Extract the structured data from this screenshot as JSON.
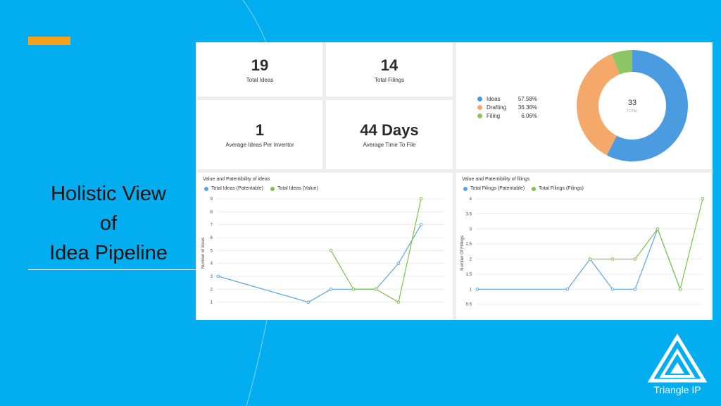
{
  "slide": {
    "title_lines": [
      "Holistic View",
      "of",
      "Idea Pipeline"
    ],
    "accent_color": "#f7a21b",
    "background_color": "#03aef0"
  },
  "kpis": {
    "total_ideas": {
      "value": "19",
      "label": "Total Ideas"
    },
    "total_filings": {
      "value": "14",
      "label": "Total Filings"
    },
    "avg_ideas_per_inventor": {
      "value": "1",
      "label": "Average Ideas Per Inventor"
    },
    "avg_time_to_file": {
      "value": "44 Days",
      "label": "Average Time To File"
    }
  },
  "donut": {
    "center_value": "33",
    "center_label": "TOTAL",
    "legend": [
      {
        "name": "Ideas",
        "pct": "57.58%",
        "color": "#4a9be0"
      },
      {
        "name": "Drafting",
        "pct": "36.36%",
        "color": "#f4a86a"
      },
      {
        "name": "Filing",
        "pct": "6.06%",
        "color": "#8cc665"
      }
    ]
  },
  "chart_data": [
    {
      "type": "line",
      "title": "Value and Patentibility of ideas",
      "xlabel": "",
      "ylabel": "Number of Ideas",
      "yticks": [
        "1",
        "2",
        "3",
        "4",
        "5",
        "6",
        "7",
        "8",
        "9"
      ],
      "ylim": [
        0.6,
        9
      ],
      "x_count": 10,
      "grid": true,
      "legend_placement": "top-left",
      "series": [
        {
          "name": "Total Ideas (Patentable)",
          "color": "#5aa5e6",
          "x": [
            0,
            4,
            5,
            6,
            7,
            8,
            9
          ],
          "values": [
            3,
            1,
            2,
            2,
            2,
            4,
            7
          ]
        },
        {
          "name": "Total Ideas (Value)",
          "color": "#7cc24a",
          "x": [
            5,
            6,
            7,
            8,
            9
          ],
          "values": [
            5,
            2,
            2,
            1,
            9
          ]
        }
      ]
    },
    {
      "type": "line",
      "title": "Value and Patentibility of filings",
      "xlabel": "",
      "ylabel": "Number Of Fillings",
      "yticks": [
        "0.5",
        "1",
        "1.5",
        "2",
        "2.5",
        "3",
        "3.5",
        "4"
      ],
      "ylim": [
        0.4,
        4
      ],
      "x_count": 10,
      "grid": true,
      "legend_placement": "top-left",
      "series": [
        {
          "name": "Total Filings (Patentable)",
          "color": "#5aa5e6",
          "x": [
            0,
            4,
            5,
            6,
            7,
            8,
            9
          ],
          "values": [
            1,
            1,
            2,
            1,
            1,
            3,
            1
          ]
        },
        {
          "name": "Total Filings (Filings)",
          "color": "#7cc24a",
          "x": [
            5,
            6,
            7,
            8,
            9,
            10
          ],
          "values": [
            2,
            2,
            2,
            3,
            1,
            4
          ]
        }
      ]
    }
  ],
  "logo": {
    "text": "Triangle IP"
  }
}
